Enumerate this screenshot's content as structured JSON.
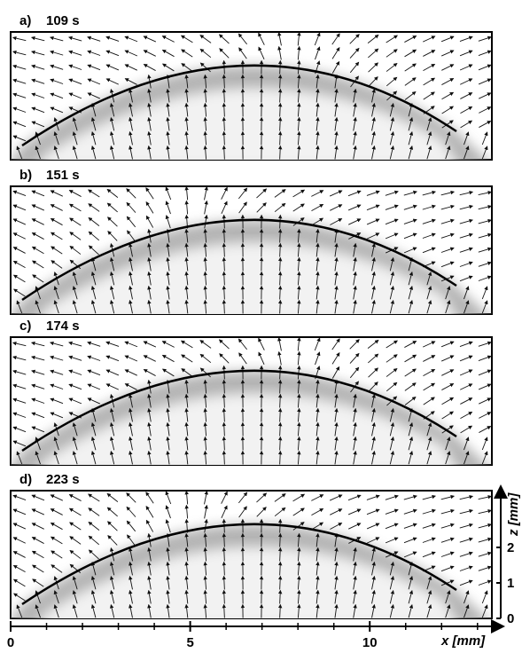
{
  "chart_data": {
    "type": "quiver",
    "panels": [
      {
        "label": "a)",
        "time": "109 s"
      },
      {
        "label": "b)",
        "time": "151 s"
      },
      {
        "label": "c)",
        "time": "174 s"
      },
      {
        "label": "d)",
        "time": "223 s"
      }
    ],
    "xlabel": "x [mm]",
    "ylabel": "z [mm]",
    "xlim": [
      0,
      13.4
    ],
    "xticks": [
      0,
      5,
      10
    ],
    "xminorticks": [
      1,
      2,
      3,
      4,
      6,
      7,
      8,
      9,
      11,
      12,
      13
    ],
    "ylim": [
      0,
      3.6
    ],
    "yticks": [
      0,
      1,
      2
    ]
  }
}
